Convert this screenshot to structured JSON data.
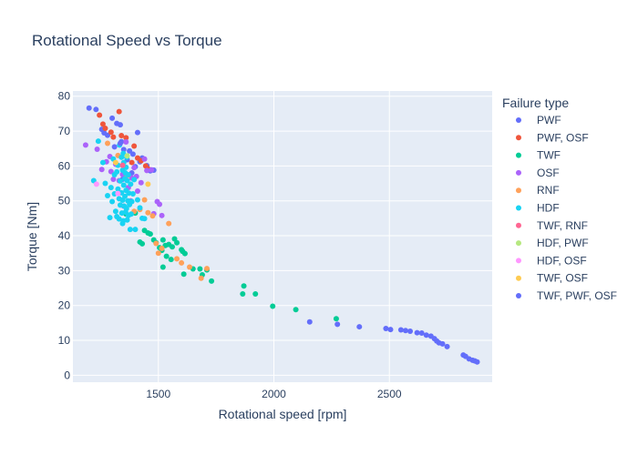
{
  "chart_data": {
    "type": "scatter",
    "title": "Rotational Speed vs Torque",
    "xlabel": "Rotational speed [rpm]",
    "ylabel": "Torque [Nm]",
    "xlim": [
      1130,
      2945
    ],
    "ylim": [
      -2,
      81.5
    ],
    "x_ticks": [
      1500,
      2000,
      2500
    ],
    "y_ticks": [
      0,
      10,
      20,
      30,
      40,
      50,
      60,
      70,
      80
    ],
    "grid": true,
    "plot_background": "#E5ECF6",
    "legend": {
      "title": "Failure type",
      "placement": "right"
    },
    "series": [
      {
        "name": "PWF",
        "color": "#636EFA",
        "points": [
          [
            1200,
            76.6
          ],
          [
            1230,
            76.2
          ],
          [
            1255,
            70.5
          ],
          [
            1265,
            69.5
          ],
          [
            1280,
            68.8
          ],
          [
            1300,
            73.7
          ],
          [
            1310,
            65.5
          ],
          [
            1320,
            72.2
          ],
          [
            1335,
            71.8
          ],
          [
            1340,
            67.0
          ],
          [
            1350,
            64.7
          ],
          [
            1365,
            61.8
          ],
          [
            1375,
            64.3
          ],
          [
            1390,
            63.4
          ],
          [
            1400,
            59.8
          ],
          [
            1410,
            69.6
          ],
          [
            1430,
            62.3
          ],
          [
            1450,
            60.1
          ],
          [
            1465,
            58.6
          ],
          [
            1480,
            58.8
          ],
          [
            1345,
            56.2
          ],
          [
            1385,
            58.0
          ],
          [
            1420,
            61.2
          ],
          [
            2155,
            15.3
          ],
          [
            2275,
            14.6
          ],
          [
            2370,
            13.9
          ],
          [
            2485,
            13.4
          ],
          [
            2505,
            13.1
          ],
          [
            2550,
            13.0
          ],
          [
            2570,
            12.8
          ],
          [
            2590,
            12.6
          ],
          [
            2620,
            12.2
          ],
          [
            2640,
            12.1
          ],
          [
            2660,
            11.5
          ],
          [
            2680,
            11.2
          ],
          [
            2695,
            10.5
          ],
          [
            2705,
            9.8
          ],
          [
            2715,
            9.3
          ],
          [
            2730,
            9.0
          ],
          [
            2750,
            8.2
          ],
          [
            2820,
            5.8
          ],
          [
            2830,
            5.4
          ],
          [
            2845,
            4.7
          ],
          [
            2860,
            4.3
          ],
          [
            2870,
            4.1
          ],
          [
            2880,
            3.8
          ]
        ]
      },
      {
        "name": "PWF, OSF",
        "color": "#EF553B",
        "points": [
          [
            1245,
            74.6
          ],
          [
            1260,
            72.0
          ],
          [
            1270,
            70.8
          ],
          [
            1295,
            69.7
          ],
          [
            1330,
            75.6
          ],
          [
            1340,
            68.7
          ],
          [
            1360,
            68.1
          ],
          [
            1395,
            65.7
          ],
          [
            1410,
            62.3
          ],
          [
            1425,
            61.5
          ],
          [
            1445,
            60.0
          ],
          [
            1455,
            59.2
          ],
          [
            1305,
            68.3
          ],
          [
            1385,
            61.0
          ]
        ]
      },
      {
        "name": "TWF",
        "color": "#00CC96",
        "points": [
          [
            1360,
            46.2
          ],
          [
            1400,
            46.5
          ],
          [
            1420,
            38.2
          ],
          [
            1430,
            37.7
          ],
          [
            1440,
            41.5
          ],
          [
            1455,
            40.8
          ],
          [
            1465,
            40.5
          ],
          [
            1480,
            38.8
          ],
          [
            1490,
            38.0
          ],
          [
            1505,
            36.6
          ],
          [
            1515,
            35.8
          ],
          [
            1520,
            38.8
          ],
          [
            1530,
            37.2
          ],
          [
            1535,
            34.1
          ],
          [
            1545,
            37.5
          ],
          [
            1555,
            33.2
          ],
          [
            1560,
            36.8
          ],
          [
            1570,
            39.1
          ],
          [
            1580,
            38.0
          ],
          [
            1600,
            36.0
          ],
          [
            1605,
            35.5
          ],
          [
            1615,
            34.9
          ],
          [
            1520,
            31.0
          ],
          [
            1610,
            29.0
          ],
          [
            1650,
            30.5
          ],
          [
            1680,
            30.5
          ],
          [
            1710,
            30.2
          ],
          [
            1690,
            28.8
          ],
          [
            1730,
            27.0
          ],
          [
            1870,
            25.6
          ],
          [
            1865,
            23.3
          ],
          [
            1920,
            23.3
          ],
          [
            1995,
            19.8
          ],
          [
            2095,
            18.8
          ],
          [
            2270,
            16.2
          ]
        ]
      },
      {
        "name": "OSF",
        "color": "#AB63FA",
        "points": [
          [
            1185,
            66.0
          ],
          [
            1235,
            64.8
          ],
          [
            1255,
            59.0
          ],
          [
            1275,
            61.2
          ],
          [
            1290,
            62.7
          ],
          [
            1295,
            58.4
          ],
          [
            1305,
            56.2
          ],
          [
            1315,
            60.5
          ],
          [
            1330,
            55.8
          ],
          [
            1345,
            57.6
          ],
          [
            1360,
            66.9
          ],
          [
            1370,
            53.8
          ],
          [
            1385,
            56.5
          ],
          [
            1395,
            59.5
          ],
          [
            1405,
            57.0
          ],
          [
            1410,
            52.8
          ],
          [
            1425,
            55.2
          ],
          [
            1440,
            62.0
          ],
          [
            1450,
            58.7
          ],
          [
            1470,
            58.9
          ],
          [
            1480,
            46.3
          ],
          [
            1495,
            49.8
          ],
          [
            1505,
            49.0
          ],
          [
            1515,
            45.8
          ],
          [
            1350,
            48.5
          ],
          [
            1380,
            50.0
          ]
        ]
      },
      {
        "name": "RNF",
        "color": "#FFA15A",
        "points": [
          [
            1280,
            66.5
          ],
          [
            1325,
            63.0
          ],
          [
            1365,
            57.2
          ],
          [
            1395,
            47.0
          ],
          [
            1420,
            47.5
          ],
          [
            1440,
            50.3
          ],
          [
            1455,
            46.6
          ],
          [
            1475,
            45.7
          ],
          [
            1490,
            37.8
          ],
          [
            1500,
            35.0
          ],
          [
            1515,
            36.4
          ],
          [
            1545,
            43.5
          ],
          [
            1580,
            33.4
          ],
          [
            1600,
            32.2
          ],
          [
            1635,
            31.0
          ],
          [
            1685,
            27.8
          ],
          [
            1710,
            30.6
          ]
        ]
      },
      {
        "name": "HDF",
        "color": "#19D3F3",
        "points": [
          [
            1220,
            55.8
          ],
          [
            1240,
            67.1
          ],
          [
            1260,
            61.0
          ],
          [
            1270,
            55.0
          ],
          [
            1280,
            51.5
          ],
          [
            1290,
            45.2
          ],
          [
            1295,
            53.8
          ],
          [
            1300,
            49.8
          ],
          [
            1305,
            62.0
          ],
          [
            1310,
            57.5
          ],
          [
            1310,
            52.0
          ],
          [
            1315,
            47.0
          ],
          [
            1320,
            58.3
          ],
          [
            1320,
            45.5
          ],
          [
            1325,
            60.2
          ],
          [
            1325,
            53.4
          ],
          [
            1330,
            50.6
          ],
          [
            1330,
            44.8
          ],
          [
            1335,
            55.7
          ],
          [
            1335,
            48.8
          ],
          [
            1340,
            62.5
          ],
          [
            1340,
            52.3
          ],
          [
            1342,
            46.5
          ],
          [
            1345,
            58.8
          ],
          [
            1345,
            50.2
          ],
          [
            1348,
            44.3
          ],
          [
            1350,
            61.0
          ],
          [
            1350,
            54.5
          ],
          [
            1352,
            48.5
          ],
          [
            1355,
            56.4
          ],
          [
            1355,
            51.3
          ],
          [
            1358,
            46.8
          ],
          [
            1360,
            59.6
          ],
          [
            1360,
            53.0
          ],
          [
            1362,
            47.8
          ],
          [
            1365,
            44.5
          ],
          [
            1365,
            55.8
          ],
          [
            1368,
            50.0
          ],
          [
            1370,
            57.5
          ],
          [
            1370,
            45.8
          ],
          [
            1372,
            52.2
          ],
          [
            1375,
            48.9
          ],
          [
            1378,
            41.8
          ],
          [
            1380,
            54.8
          ],
          [
            1382,
            46.2
          ],
          [
            1385,
            49.8
          ],
          [
            1390,
            52.0
          ],
          [
            1395,
            56.1
          ],
          [
            1400,
            41.8
          ],
          [
            1410,
            50.3
          ],
          [
            1420,
            48.0
          ],
          [
            1430,
            45.0
          ],
          [
            1440,
            44.9
          ],
          [
            1345,
            43.5
          ],
          [
            1357,
            58.0
          ],
          [
            1363,
            62.5
          ],
          [
            1332,
            66.0
          ],
          [
            1348,
            63.6
          ]
        ]
      },
      {
        "name": "TWF, RNF",
        "color": "#FF6692",
        "points": [
          [
            1345,
            60.2
          ]
        ]
      },
      {
        "name": "HDF, PWF",
        "color": "#B6E880",
        "points": [
          [
            1365,
            62.9
          ]
        ]
      },
      {
        "name": "HDF, OSF",
        "color": "#FF97FF",
        "points": [
          [
            1232,
            54.8
          ],
          [
            1325,
            52.1
          ]
        ]
      },
      {
        "name": "TWF, OSF",
        "color": "#FECB52",
        "points": [
          [
            1455,
            54.8
          ],
          [
            1315,
            61.0
          ]
        ]
      },
      {
        "name": "TWF, PWF, OSF",
        "color": "#636EFA",
        "points": [
          [
            1335,
            66.5
          ]
        ]
      }
    ]
  }
}
